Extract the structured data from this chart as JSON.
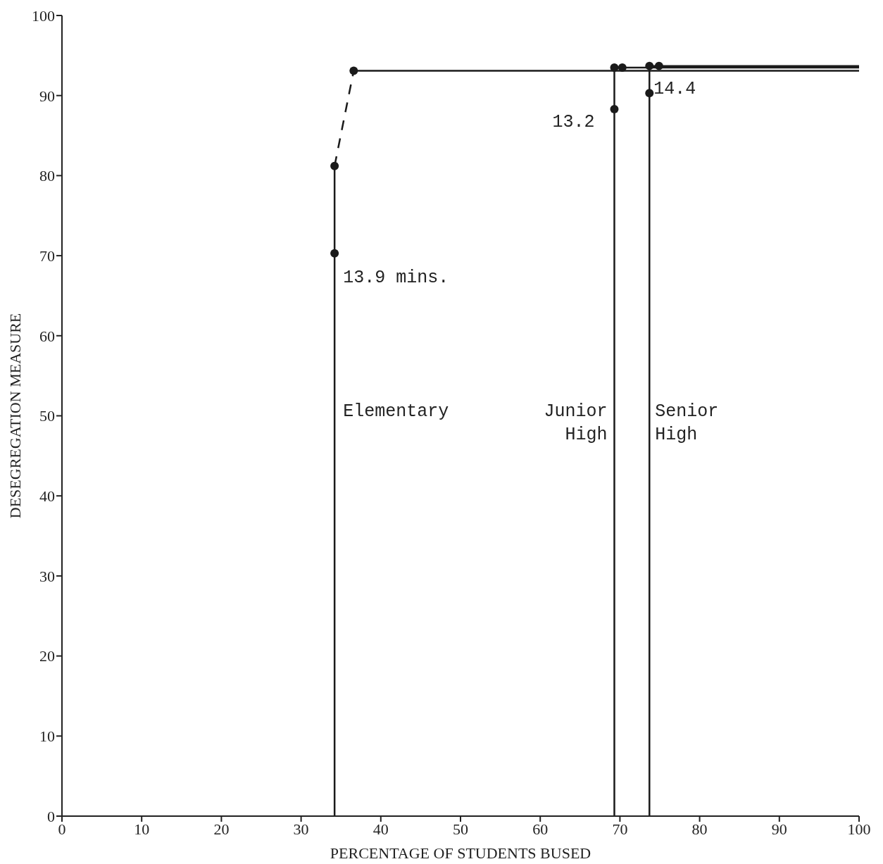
{
  "chart_data": {
    "type": "line",
    "xlabel": "PERCENTAGE OF STUDENTS BUSED",
    "ylabel": "DESEGREGATION MEASURE",
    "xlim": [
      0,
      100
    ],
    "ylim": [
      0,
      100
    ],
    "xticks": [
      0,
      10,
      20,
      30,
      40,
      50,
      60,
      70,
      80,
      90,
      100
    ],
    "yticks": [
      0,
      10,
      20,
      30,
      40,
      50,
      60,
      70,
      80,
      90,
      100
    ],
    "grid": false,
    "marker": "none",
    "series": [
      {
        "color": "#1a1a1a",
        "line_style": "solid",
        "x": [
          34.2,
          34.2
        ],
        "values": [
          0,
          81.2
        ]
      },
      {
        "color": "#1a1a1a",
        "line_style": "dashed",
        "x": [
          34.2,
          36.6
        ],
        "values": [
          81.2,
          93.1
        ]
      },
      {
        "color": "#1a1a1a",
        "line_style": "solid",
        "x": [
          36.6,
          100
        ],
        "values": [
          93.1,
          93.1
        ]
      },
      {
        "color": "#1a1a1a",
        "line_style": "solid",
        "x": [
          69.3,
          69.3,
          70.3,
          100
        ],
        "values": [
          0,
          93.5,
          93.5,
          93.5
        ]
      },
      {
        "color": "#1a1a1a",
        "line_style": "solid",
        "x": [
          73.7,
          73.7,
          74.9,
          100
        ],
        "values": [
          0,
          93.7,
          93.7,
          93.7
        ]
      },
      {
        "type": "scatter",
        "color": "#1a1a1a",
        "marker": "circle",
        "x": [
          34.2,
          34.2,
          36.6,
          69.3,
          69.3,
          70.3,
          73.7,
          73.7,
          74.9
        ],
        "values": [
          70.3,
          81.2,
          93.1,
          88.3,
          93.5,
          93.5,
          90.3,
          93.7,
          93.7
        ]
      }
    ],
    "annotations": [
      {
        "text": "13.9 mins.",
        "x": 34.2,
        "y": 70.3
      },
      {
        "text": "Elementary",
        "x": 34.2,
        "y": 50.6
      },
      {
        "text": "Junior\nHigh",
        "x": 69.3,
        "y": 50.6
      },
      {
        "text": "13.2",
        "x": 69.3,
        "y": 88.3
      },
      {
        "text": "Senior\nHigh",
        "x": 73.7,
        "y": 50.6
      },
      {
        "text": "14.4",
        "x": 73.7,
        "y": 90.3
      }
    ]
  }
}
